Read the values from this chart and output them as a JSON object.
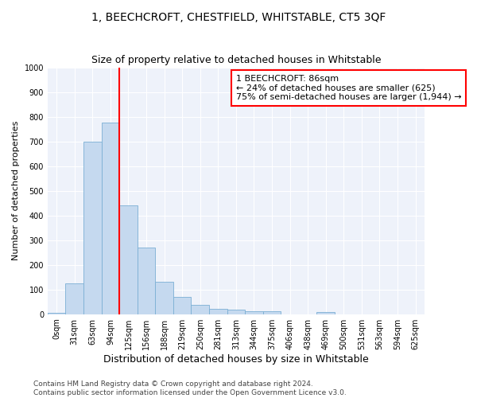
{
  "title": "1, BEECHCROFT, CHESTFIELD, WHITSTABLE, CT5 3QF",
  "subtitle": "Size of property relative to detached houses in Whitstable",
  "xlabel": "Distribution of detached houses by size in Whitstable",
  "ylabel": "Number of detached properties",
  "categories": [
    "0sqm",
    "31sqm",
    "63sqm",
    "94sqm",
    "125sqm",
    "156sqm",
    "188sqm",
    "219sqm",
    "250sqm",
    "281sqm",
    "313sqm",
    "344sqm",
    "375sqm",
    "406sqm",
    "438sqm",
    "469sqm",
    "500sqm",
    "531sqm",
    "563sqm",
    "594sqm",
    "625sqm"
  ],
  "values": [
    5,
    125,
    700,
    775,
    440,
    270,
    130,
    70,
    38,
    22,
    20,
    12,
    12,
    0,
    0,
    8,
    0,
    0,
    0,
    0,
    0
  ],
  "bar_color": "#c5d9ef",
  "bar_edge_color": "#7bafd4",
  "red_line_x": 3.5,
  "annotation_line1": "1 BEECHCROFT: 86sqm",
  "annotation_line2": "← 24% of detached houses are smaller (625)",
  "annotation_line3": "75% of semi-detached houses are larger (1,944) →",
  "annotation_box_color": "white",
  "annotation_box_edge_color": "red",
  "red_line_color": "red",
  "ylim": [
    0,
    1000
  ],
  "yticks": [
    0,
    100,
    200,
    300,
    400,
    500,
    600,
    700,
    800,
    900,
    1000
  ],
  "bg_color": "#eef2fa",
  "footer_line1": "Contains HM Land Registry data © Crown copyright and database right 2024.",
  "footer_line2": "Contains public sector information licensed under the Open Government Licence v3.0.",
  "title_fontsize": 10,
  "subtitle_fontsize": 9,
  "xlabel_fontsize": 9,
  "ylabel_fontsize": 8,
  "tick_fontsize": 7,
  "footer_fontsize": 6.5,
  "annotation_fontsize": 8
}
